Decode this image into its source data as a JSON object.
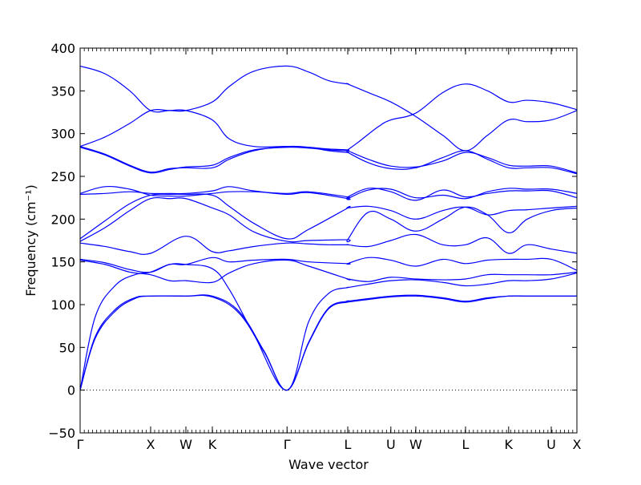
{
  "chart_data": {
    "type": "line",
    "title": "",
    "xlabel": "Wave vector",
    "ylabel": "Frequency (cm⁻¹)",
    "ylim": [
      -50,
      400
    ],
    "yticks": [
      -50,
      0,
      50,
      100,
      150,
      200,
      250,
      300,
      350,
      400
    ],
    "xlim": [
      0,
      1
    ],
    "xticks": [
      {
        "label": "Γ",
        "x": 0.0
      },
      {
        "label": "X",
        "x": 0.1419
      },
      {
        "label": "W",
        "x": 0.2129
      },
      {
        "label": "K",
        "x": 0.2661
      },
      {
        "label": "Γ",
        "x": 0.4165
      },
      {
        "label": "L",
        "x": 0.5387
      },
      {
        "label": "U",
        "x": 0.6255
      },
      {
        "label": "W",
        "x": 0.6757
      },
      {
        "label": "L",
        "x": 0.7758
      },
      {
        "label": "K",
        "x": 0.8626
      },
      {
        "label": "U",
        "x": 0.9484
      },
      {
        "label": "X",
        "x": 1.0
      }
    ],
    "grid": false,
    "legend": "none",
    "line_color": "#0000ff",
    "zero_line": {
      "y": 0,
      "style": "dotted"
    },
    "series": [
      {
        "x": [
          0,
          0.03,
          0.07,
          0.11,
          0.1419,
          0.2129,
          0.2661,
          0.32,
          0.37,
          0.4165,
          0.46,
          0.5,
          0.5387,
          0.5387,
          0.58,
          0.6255,
          0.6757,
          0.73,
          0.7758,
          0.82,
          0.8626,
          0.9,
          0.9484,
          1.0
        ],
        "y": [
          0,
          60,
          92,
          107,
          110,
          110,
          109,
          90,
          45,
          0,
          55,
          95,
          103,
          103,
          106,
          109,
          110,
          107,
          103,
          107,
          110,
          110,
          110,
          110
        ]
      },
      {
        "x": [
          0,
          0.03,
          0.07,
          0.11,
          0.1419,
          0.2129,
          0.2661,
          0.32,
          0.37,
          0.4165,
          0.46,
          0.5,
          0.5387,
          0.5387,
          0.58,
          0.6255,
          0.6757,
          0.73,
          0.7758,
          0.82,
          0.8626,
          0.9,
          0.9484,
          1.0
        ],
        "y": [
          0,
          62,
          94,
          108,
          110,
          110,
          110,
          92,
          46,
          0,
          56,
          96,
          104,
          104,
          107,
          110,
          111,
          108,
          104,
          108,
          110,
          110,
          110,
          110
        ]
      },
      {
        "x": [
          0,
          0.03,
          0.07,
          0.11,
          0.1419,
          0.18,
          0.2129,
          0.2661,
          0.3,
          0.35,
          0.4165,
          0.46,
          0.5,
          0.5387,
          0.5387,
          0.58,
          0.6255,
          0.6757,
          0.73,
          0.7758,
          0.82,
          0.8626,
          0.9,
          0.9484,
          1.0
        ],
        "y": [
          0,
          85,
          122,
          135,
          138,
          147,
          147,
          142,
          118,
          65,
          0,
          80,
          113,
          120,
          120,
          124,
          128,
          129,
          126,
          122,
          124,
          128,
          128,
          130,
          137
        ]
      },
      {
        "x": [
          0,
          0.05,
          0.1,
          0.1419,
          0.18,
          0.2129,
          0.2661,
          0.3,
          0.35,
          0.4165,
          0.46,
          0.5387,
          0.5387,
          0.58,
          0.6255,
          0.6757,
          0.73,
          0.7758,
          0.82,
          0.8626,
          0.9,
          0.9484,
          1.0
        ],
        "y": [
          152,
          147,
          138,
          135,
          128,
          128,
          126,
          137,
          148,
          152,
          145,
          130,
          130,
          127,
          132,
          130,
          129,
          130,
          135,
          135,
          135,
          135,
          138
        ]
      },
      {
        "x": [
          0,
          0.05,
          0.1,
          0.1419,
          0.18,
          0.2129,
          0.2661,
          0.3,
          0.35,
          0.4165,
          0.46,
          0.5387,
          0.5387,
          0.58,
          0.6255,
          0.6757,
          0.73,
          0.7758,
          0.82,
          0.8626,
          0.9,
          0.9484,
          1.0
        ],
        "y": [
          153,
          149,
          141,
          138,
          147,
          147,
          155,
          150,
          152,
          153,
          150,
          148,
          148,
          155,
          152,
          145,
          153,
          148,
          152,
          153,
          153,
          153,
          140
        ]
      },
      {
        "x": [
          0,
          0.05,
          0.1,
          0.1419,
          0.2129,
          0.2661,
          0.3,
          0.35,
          0.4165,
          0.46,
          0.5,
          0.5387,
          0.5387,
          0.58,
          0.6255,
          0.6757,
          0.73,
          0.7758,
          0.82,
          0.8626,
          0.9,
          0.9484,
          1.0
        ],
        "y": [
          172,
          168,
          162,
          160,
          180,
          162,
          163,
          168,
          172,
          171,
          170,
          170,
          170,
          168,
          175,
          182,
          170,
          170,
          178,
          160,
          170,
          165,
          160
        ]
      },
      {
        "x": [
          0,
          0.05,
          0.1,
          0.1419,
          0.18,
          0.2129,
          0.2661,
          0.3,
          0.35,
          0.4165,
          0.46,
          0.5387,
          0.5387,
          0.58,
          0.6255,
          0.6757,
          0.73,
          0.7758,
          0.82,
          0.8626,
          0.9,
          0.9484,
          1.0
        ],
        "y": [
          174,
          190,
          210,
          224,
          224,
          224,
          213,
          205,
          185,
          174,
          175,
          176,
          176,
          208,
          200,
          186,
          200,
          214,
          205,
          184,
          200,
          210,
          213
        ]
      },
      {
        "x": [
          0,
          0.05,
          0.1,
          0.1419,
          0.18,
          0.2129,
          0.2661,
          0.3,
          0.35,
          0.4165,
          0.46,
          0.5387,
          0.5387,
          0.58,
          0.6255,
          0.6757,
          0.73,
          0.7758,
          0.82,
          0.8626,
          0.9,
          0.9484,
          1.0
        ],
        "y": [
          177,
          198,
          218,
          228,
          229,
          229,
          228,
          215,
          195,
          177,
          188,
          213,
          213,
          215,
          210,
          200,
          210,
          214,
          205,
          210,
          211,
          213,
          215
        ]
      },
      {
        "x": [
          0,
          0.05,
          0.1,
          0.1419,
          0.18,
          0.2129,
          0.2661,
          0.3,
          0.35,
          0.4165,
          0.46,
          0.5387,
          0.5387,
          0.58,
          0.6255,
          0.6757,
          0.73,
          0.7758,
          0.82,
          0.8626,
          0.9,
          0.9484,
          1.0
        ],
        "y": [
          229,
          230,
          232,
          230,
          230,
          230,
          233,
          238,
          233,
          229,
          231,
          224,
          224,
          234,
          235,
          225,
          228,
          224,
          232,
          236,
          235,
          235,
          230
        ]
      },
      {
        "x": [
          0,
          0.05,
          0.1,
          0.1419,
          0.18,
          0.2129,
          0.2661,
          0.3,
          0.35,
          0.4165,
          0.46,
          0.5387,
          0.5387,
          0.58,
          0.6255,
          0.6757,
          0.73,
          0.7758,
          0.82,
          0.8626,
          0.9,
          0.9484,
          1.0
        ],
        "y": [
          230,
          238,
          235,
          228,
          227,
          227,
          230,
          232,
          232,
          230,
          232,
          226,
          226,
          236,
          232,
          222,
          234,
          226,
          230,
          233,
          233,
          233,
          225
        ]
      },
      {
        "x": [
          0,
          0.05,
          0.1,
          0.1419,
          0.18,
          0.2129,
          0.2661,
          0.3,
          0.35,
          0.4165,
          0.46,
          0.5,
          0.5387,
          0.5387,
          0.58,
          0.6255,
          0.6757,
          0.73,
          0.7758,
          0.82,
          0.8626,
          0.9,
          0.9484,
          1.0
        ],
        "y": [
          284,
          275,
          262,
          254,
          258,
          261,
          263,
          272,
          281,
          284,
          283,
          281,
          280,
          280,
          270,
          262,
          261,
          268,
          278,
          272,
          263,
          262,
          262,
          254
        ]
      },
      {
        "x": [
          0,
          0.05,
          0.1,
          0.1419,
          0.18,
          0.2129,
          0.2661,
          0.3,
          0.35,
          0.4165,
          0.46,
          0.5,
          0.5387,
          0.5387,
          0.58,
          0.6255,
          0.6757,
          0.73,
          0.7758,
          0.82,
          0.8626,
          0.9,
          0.9484,
          1.0
        ],
        "y": [
          285,
          276,
          263,
          255,
          259,
          260,
          260,
          270,
          280,
          285,
          284,
          280,
          278,
          278,
          266,
          259,
          260,
          272,
          280,
          270,
          260,
          260,
          260,
          253
        ]
      },
      {
        "x": [
          0,
          0.05,
          0.1,
          0.1419,
          0.18,
          0.2129,
          0.2661,
          0.3,
          0.35,
          0.4165,
          0.46,
          0.5,
          0.5387,
          0.5387,
          0.56,
          0.6,
          0.6255,
          0.6757,
          0.73,
          0.7758,
          0.82,
          0.8626,
          0.9,
          0.9484,
          1.0
        ],
        "y": [
          285,
          296,
          312,
          327,
          327,
          327,
          316,
          294,
          285,
          285,
          284,
          282,
          281,
          281,
          290,
          308,
          316,
          324,
          348,
          358,
          350,
          337,
          339,
          336,
          328
        ]
      },
      {
        "x": [
          0,
          0.05,
          0.1,
          0.1419,
          0.18,
          0.2129,
          0.2661,
          0.3,
          0.35,
          0.4165,
          0.46,
          0.5,
          0.5387,
          0.5387,
          0.58,
          0.6255,
          0.6757,
          0.73,
          0.7758,
          0.82,
          0.8626,
          0.9,
          0.9484,
          1.0
        ],
        "y": [
          379,
          370,
          350,
          327,
          327,
          327,
          337,
          355,
          373,
          379,
          372,
          362,
          358,
          358,
          348,
          337,
          320,
          298,
          280,
          298,
          316,
          314,
          316,
          327
        ]
      }
    ]
  }
}
